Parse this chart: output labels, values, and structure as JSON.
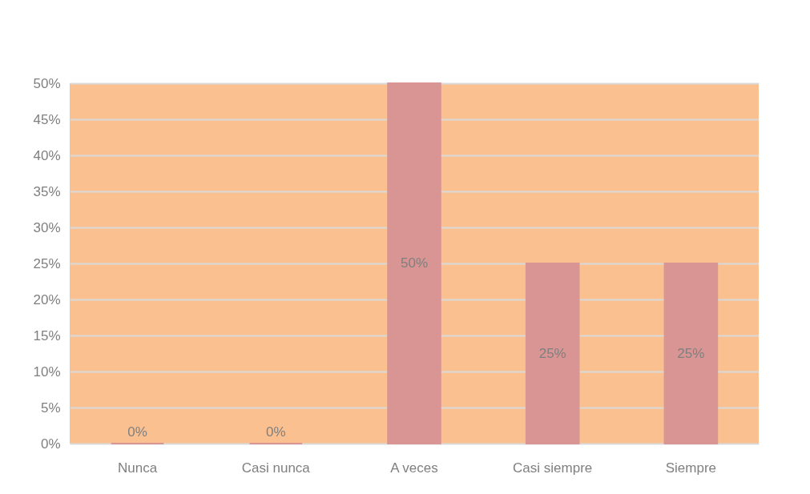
{
  "chart_data": {
    "type": "bar",
    "categories": [
      "Nunca",
      "Casi nunca",
      "A veces",
      "Casi siempre",
      "Siempre"
    ],
    "values": [
      0,
      0,
      50,
      25,
      25
    ],
    "color": "#d99594",
    "value_labels": [
      "0%",
      "0%",
      "50%",
      "25%",
      "25%"
    ],
    "ylim": [
      0,
      50
    ],
    "yticks": [
      {
        "value": 0,
        "label": "0%"
      },
      {
        "value": 5,
        "label": "5%"
      },
      {
        "value": 10,
        "label": "10%"
      },
      {
        "value": 15,
        "label": "15%"
      },
      {
        "value": 20,
        "label": "20%"
      },
      {
        "value": 25,
        "label": "25%"
      },
      {
        "value": 30,
        "label": "30%"
      },
      {
        "value": 35,
        "label": "35%"
      },
      {
        "value": 40,
        "label": "40%"
      },
      {
        "value": 45,
        "label": "45%"
      },
      {
        "value": 50,
        "label": "50%"
      }
    ],
    "grid": "y"
  }
}
